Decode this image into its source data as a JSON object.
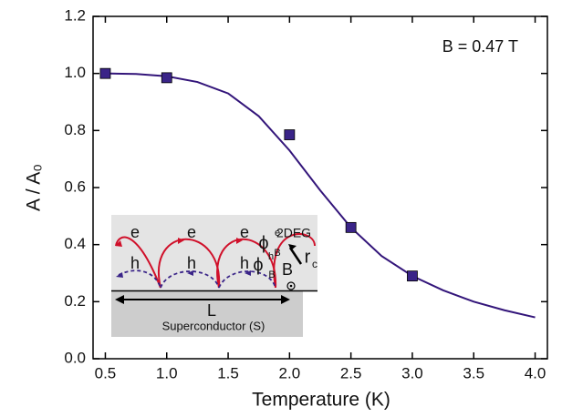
{
  "chart_data": {
    "type": "scatter",
    "xlabel": "Temperature (K)",
    "ylabel": "A / A₀",
    "annotation": "B = 0.47 T",
    "xlim": [
      0.4,
      4.1
    ],
    "ylim": [
      0,
      1.2
    ],
    "xticks": [
      0.5,
      {
        "value": 1.0,
        "label": "1.0"
      },
      1.5,
      {
        "value": 2.0,
        "label": "2.0"
      },
      2.5,
      {
        "value": 3.0,
        "label": "3.0"
      },
      3.5,
      {
        "value": 4.0,
        "label": "4.0"
      }
    ],
    "yticks": [
      {
        "value": 0.0,
        "label": "0.0"
      },
      0.2,
      0.4,
      0.6,
      0.8,
      {
        "value": 1.0,
        "label": "1.0"
      },
      1.2
    ],
    "series": [
      {
        "type": "line",
        "color": "#33157a",
        "x": [
          0.5,
          0.75,
          1.0,
          1.25,
          1.5,
          1.75,
          2.0,
          2.25,
          2.5,
          2.75,
          3.0,
          3.25,
          3.5,
          3.75,
          4.0
        ],
        "values": [
          1.0,
          0.998,
          0.99,
          0.97,
          0.93,
          0.85,
          0.73,
          0.59,
          0.46,
          0.36,
          0.29,
          0.24,
          0.2,
          0.17,
          0.145
        ]
      },
      {
        "type": "scatter",
        "color": "#3a2488",
        "x": [
          0.5,
          1.0,
          2.0,
          2.5,
          3.0
        ],
        "values": [
          1.0,
          0.985,
          0.785,
          0.46,
          0.29
        ]
      }
    ],
    "inset_labels": [
      "e",
      "e",
      "e",
      "h",
      "h",
      "h",
      "ϕ",
      "B",
      "e",
      "2DEG",
      "ϕ",
      "B",
      "h",
      "B",
      "r",
      "c",
      "L",
      "Superconductor (S)"
    ]
  }
}
